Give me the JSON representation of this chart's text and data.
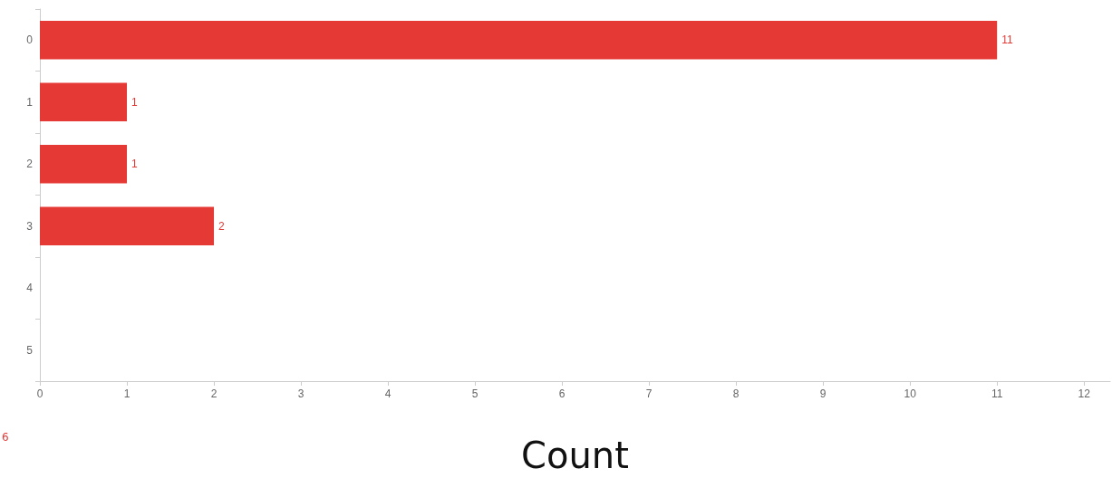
{
  "chart_data": {
    "type": "bar",
    "orientation": "horizontal",
    "xlabel": "Count",
    "categories": [
      "0",
      "1",
      "2",
      "3",
      "4",
      "5"
    ],
    "values": [
      11,
      1,
      1,
      2,
      0,
      0
    ],
    "value_labels": [
      "11",
      "1",
      "1",
      "2",
      null,
      null
    ],
    "color": "#e53935",
    "xlim": [
      0,
      12.3
    ],
    "xticks": [
      0,
      1,
      2,
      3,
      4,
      5,
      6,
      7,
      8,
      9,
      10,
      11,
      12
    ],
    "annotations": [
      "6"
    ]
  }
}
